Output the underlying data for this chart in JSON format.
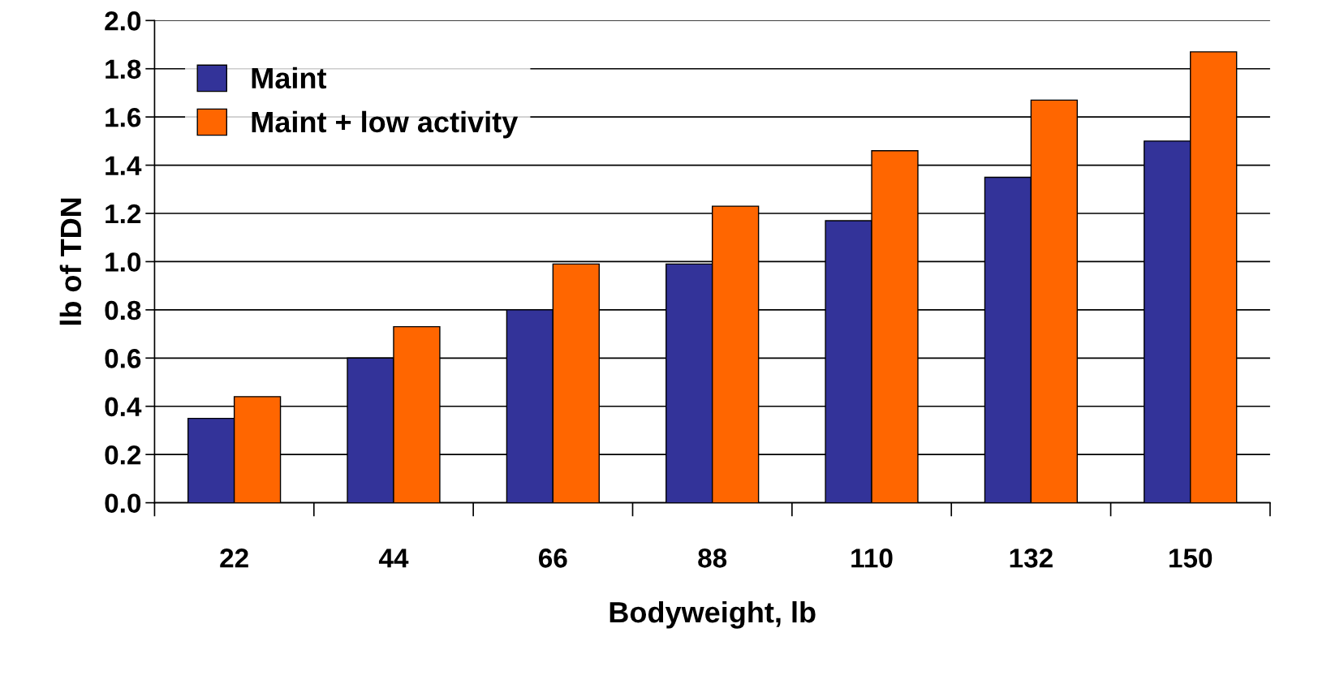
{
  "chart_data": {
    "type": "bar",
    "xlabel": "Bodyweight, lb",
    "ylabel": "lb of TDN",
    "categories": [
      "22",
      "44",
      "66",
      "88",
      "110",
      "132",
      "150"
    ],
    "series": [
      {
        "name": "Maint",
        "color": "#333399",
        "values": [
          0.35,
          0.6,
          0.8,
          0.99,
          1.17,
          1.35,
          1.5
        ]
      },
      {
        "name": "Maint + low activity",
        "color": "#ff6600",
        "values": [
          0.44,
          0.73,
          0.99,
          1.23,
          1.46,
          1.67,
          1.87
        ]
      }
    ],
    "ylim": [
      0,
      2.0
    ],
    "yticks": [
      {
        "value": 0,
        "label": "0.0"
      },
      {
        "value": 0.2,
        "label": "0.2"
      },
      {
        "value": 0.4,
        "label": "0.4"
      },
      {
        "value": 0.6,
        "label": "0.6"
      },
      {
        "value": 0.8,
        "label": "0.8"
      },
      {
        "value": 1.0,
        "label": "1.0"
      },
      {
        "value": 1.2,
        "label": "1.2"
      },
      {
        "value": 1.4,
        "label": "1.4"
      },
      {
        "value": 1.6,
        "label": "1.6"
      },
      {
        "value": 1.8,
        "label": "1.8"
      },
      {
        "value": 2.0,
        "label": "2.0"
      }
    ],
    "grid": "y",
    "legend": "top left"
  }
}
